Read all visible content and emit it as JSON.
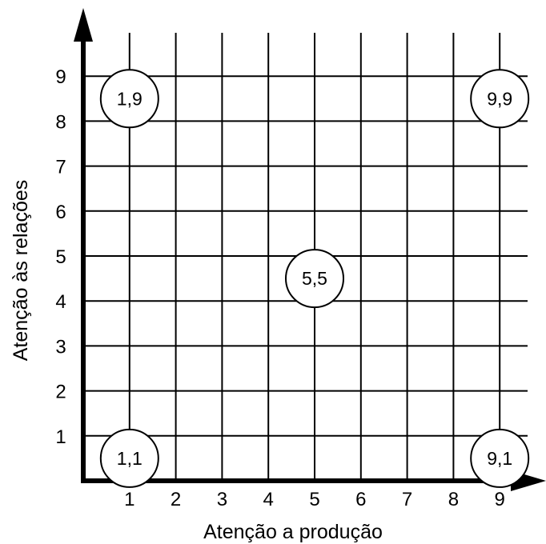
{
  "diagram": {
    "x_axis_title": "Atenção a produção",
    "y_axis_title": "Atenção às relações",
    "x_ticks": [
      "1",
      "2",
      "3",
      "4",
      "5",
      "6",
      "7",
      "8",
      "9"
    ],
    "y_ticks": [
      "1",
      "2",
      "3",
      "4",
      "5",
      "6",
      "7",
      "8",
      "9"
    ],
    "markers": [
      {
        "label": "1,9",
        "x": 1,
        "y": 9
      },
      {
        "label": "9,9",
        "x": 9,
        "y": 9
      },
      {
        "label": "5,5",
        "x": 5,
        "y": 5
      },
      {
        "label": "1,1",
        "x": 1,
        "y": 1
      },
      {
        "label": "9,1",
        "x": 9,
        "y": 1
      }
    ],
    "colors": {
      "line": "#000000",
      "marker_fill": "#ffffff",
      "background": "#ffffff"
    }
  }
}
